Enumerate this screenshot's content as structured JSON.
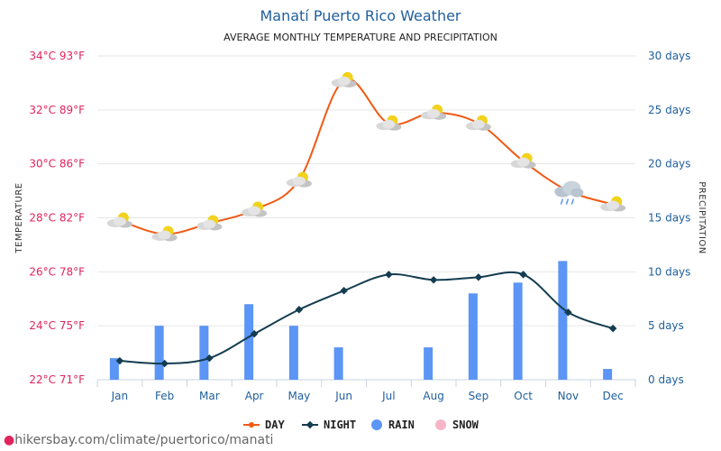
{
  "title": "Manatí Puerto Rico Weather",
  "subtitle": "AVERAGE MONTHLY TEMPERATURE AND PRECIPITATION",
  "credit": "hikersbay.com/climate/puertorico/manati",
  "colors": {
    "day": "#f05a14",
    "night": "#143c50",
    "rain": "#5b95f5",
    "snow": "#f7b6c8",
    "left_axis": "#e0245e",
    "right_axis": "#1f5f9c",
    "grid": "#e6e6e6"
  },
  "chart_data": {
    "type": "line",
    "title": "Manatí Puerto Rico Weather",
    "subtitle": "AVERAGE MONTHLY TEMPERATURE AND PRECIPITATION",
    "categories": [
      "Jan",
      "Feb",
      "Mar",
      "Apr",
      "May",
      "Jun",
      "Jul",
      "Aug",
      "Sep",
      "Oct",
      "Nov",
      "Dec"
    ],
    "series": [
      {
        "name": "DAY",
        "kind": "line",
        "axis": "left",
        "unit": "°C",
        "values": [
          27.9,
          27.4,
          27.8,
          28.3,
          29.4,
          33.1,
          31.5,
          31.9,
          31.5,
          30.1,
          29.0,
          28.5
        ]
      },
      {
        "name": "NIGHT",
        "kind": "line",
        "axis": "left",
        "unit": "°C",
        "values": [
          22.7,
          22.6,
          22.8,
          23.7,
          24.6,
          25.3,
          25.9,
          25.7,
          25.8,
          25.9,
          24.5,
          23.9
        ]
      },
      {
        "name": "RAIN",
        "kind": "bar",
        "axis": "right",
        "unit": "days",
        "values": [
          2,
          5,
          5,
          7,
          5,
          3,
          0,
          3,
          8,
          9,
          11,
          1
        ]
      },
      {
        "name": "SNOW",
        "kind": "bar",
        "axis": "right",
        "unit": "days",
        "values": [
          0,
          0,
          0,
          0,
          0,
          0,
          0,
          0,
          0,
          0,
          0,
          0
        ]
      }
    ],
    "weather_icons": [
      "partly-cloudy",
      "partly-cloudy",
      "partly-cloudy",
      "partly-cloudy",
      "partly-cloudy",
      "partly-cloudy",
      "partly-cloudy",
      "partly-cloudy",
      "partly-cloudy",
      "partly-cloudy",
      "rain-cloud",
      "partly-cloudy"
    ],
    "left_axis": {
      "label": "TEMPERATURE",
      "ylim": [
        22,
        34
      ],
      "ticks": [
        22,
        24,
        26,
        28,
        30,
        32,
        34
      ],
      "tick_labels": [
        "22°C 71°F",
        "24°C 75°F",
        "26°C 78°F",
        "28°C 82°F",
        "30°C 86°F",
        "32°C 89°F",
        "34°C 93°F"
      ]
    },
    "right_axis": {
      "label": "PRECIPITATION",
      "ylim": [
        0,
        30
      ],
      "ticks": [
        0,
        5,
        10,
        15,
        20,
        25,
        30
      ],
      "tick_labels": [
        "0 days",
        "5 days",
        "10 days",
        "15 days",
        "20 days",
        "25 days",
        "30 days"
      ]
    },
    "legend": {
      "placement": "bottom",
      "items": [
        "DAY",
        "NIGHT",
        "RAIN",
        "SNOW"
      ]
    },
    "grid": true
  }
}
